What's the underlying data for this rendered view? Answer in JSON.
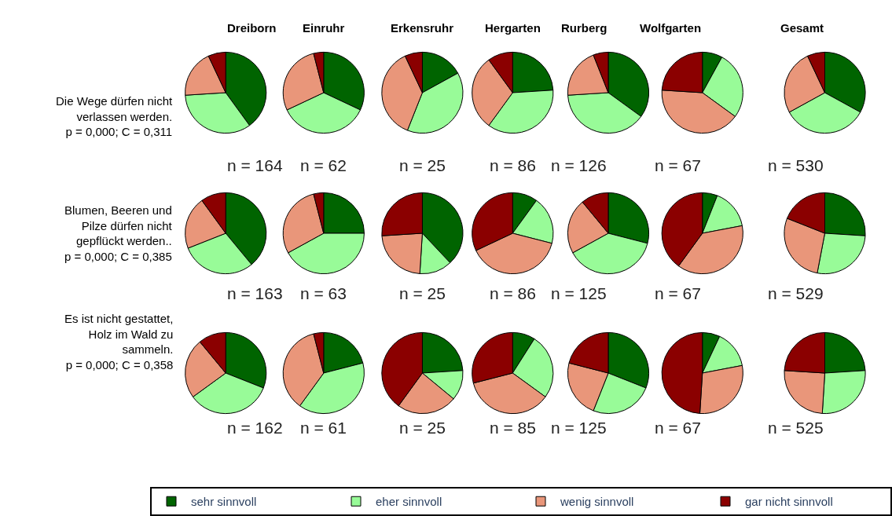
{
  "chart_data": [
    {
      "type": "pie",
      "title": "Dreiborn",
      "categories": [
        "sehr sinnvoll",
        "eher sinnvoll",
        "wenig sinnvoll",
        "gar nicht sinnvoll"
      ],
      "values": [
        40,
        34,
        19,
        7
      ],
      "colors": [
        "#006400",
        "#98fb98",
        "#e9967a",
        "#8b0000"
      ],
      "legend": "bottom",
      "annotations": [
        "Die Wege dürfen nicht\nverlassen werden.\np = 0,000; C = 0,311",
        "n = 164"
      ]
    },
    {
      "type": "pie",
      "title": "Einruhr",
      "values": [
        32,
        36,
        28,
        4
      ],
      "colors": [
        "#006400",
        "#98fb98",
        "#e9967a",
        "#8b0000"
      ],
      "annotations": [
        "n = 62"
      ]
    },
    {
      "type": "pie",
      "title": "Erkensruhr",
      "values": [
        17,
        39,
        37,
        7
      ],
      "colors": [
        "#006400",
        "#98fb98",
        "#e9967a",
        "#8b0000"
      ],
      "annotations": [
        "n = 25"
      ]
    },
    {
      "type": "pie",
      "title": "Hergarten",
      "values": [
        24,
        36,
        30,
        10
      ],
      "colors": [
        "#006400",
        "#98fb98",
        "#e9967a",
        "#8b0000"
      ],
      "annotations": [
        "n = 86"
      ]
    },
    {
      "type": "pie",
      "title": "Rurberg",
      "values": [
        35,
        39,
        20,
        6
      ],
      "colors": [
        "#006400",
        "#98fb98",
        "#e9967a",
        "#8b0000"
      ],
      "annotations": [
        "n = 126"
      ]
    },
    {
      "type": "pie",
      "title": "Wolfgarten",
      "values": [
        8,
        27,
        41,
        24
      ],
      "colors": [
        "#006400",
        "#98fb98",
        "#e9967a",
        "#8b0000"
      ],
      "annotations": [
        "n = 67"
      ]
    },
    {
      "type": "pie",
      "title": "Gesamt",
      "values": [
        33,
        34,
        26,
        7
      ],
      "colors": [
        "#006400",
        "#98fb98",
        "#e9967a",
        "#8b0000"
      ],
      "annotations": [
        "n = 530"
      ]
    },
    {
      "type": "pie",
      "values": [
        39,
        30,
        21,
        10
      ],
      "colors": [
        "#006400",
        "#98fb98",
        "#e9967a",
        "#8b0000"
      ],
      "annotations": [
        "Blumen, Beeren und\nPilze dürfen nicht\ngepflückt werden..\np = 0,000; C = 0,385",
        "n = 163"
      ]
    },
    {
      "type": "pie",
      "values": [
        25,
        42,
        29,
        4
      ],
      "colors": [
        "#006400",
        "#98fb98",
        "#e9967a",
        "#8b0000"
      ],
      "annotations": [
        "n = 63"
      ]
    },
    {
      "type": "pie",
      "values": [
        38,
        13,
        23,
        26
      ],
      "colors": [
        "#006400",
        "#98fb98",
        "#e9967a",
        "#8b0000"
      ],
      "annotations": [
        "n = 25"
      ]
    },
    {
      "type": "pie",
      "values": [
        10,
        19,
        39,
        32
      ],
      "colors": [
        "#006400",
        "#98fb98",
        "#e9967a",
        "#8b0000"
      ],
      "annotations": [
        "n = 86"
      ]
    },
    {
      "type": "pie",
      "values": [
        29,
        38,
        22,
        11
      ],
      "colors": [
        "#006400",
        "#98fb98",
        "#e9967a",
        "#8b0000"
      ],
      "annotations": [
        "n = 125"
      ]
    },
    {
      "type": "pie",
      "values": [
        6,
        16,
        38,
        40
      ],
      "colors": [
        "#006400",
        "#98fb98",
        "#e9967a",
        "#8b0000"
      ],
      "annotations": [
        "n = 67"
      ]
    },
    {
      "type": "pie",
      "values": [
        26,
        27,
        28,
        19
      ],
      "colors": [
        "#006400",
        "#98fb98",
        "#e9967a",
        "#8b0000"
      ],
      "annotations": [
        "n = 529"
      ]
    },
    {
      "type": "pie",
      "values": [
        31,
        34,
        24,
        11
      ],
      "colors": [
        "#006400",
        "#98fb98",
        "#e9967a",
        "#8b0000"
      ],
      "annotations": [
        "Es ist nicht gestattet,\nHolz im Wald zu\nsammeln.\np = 0,000; C = 0,358",
        "n = 162"
      ]
    },
    {
      "type": "pie",
      "values": [
        21,
        39,
        36,
        4
      ],
      "colors": [
        "#006400",
        "#98fb98",
        "#e9967a",
        "#8b0000"
      ],
      "annotations": [
        "n = 61"
      ]
    },
    {
      "type": "pie",
      "values": [
        24,
        12,
        24,
        40
      ],
      "colors": [
        "#006400",
        "#98fb98",
        "#e9967a",
        "#8b0000"
      ],
      "annotations": [
        "n = 25"
      ]
    },
    {
      "type": "pie",
      "values": [
        9,
        26,
        36,
        29
      ],
      "colors": [
        "#006400",
        "#98fb98",
        "#e9967a",
        "#8b0000"
      ],
      "annotations": [
        "n = 85"
      ]
    },
    {
      "type": "pie",
      "values": [
        31,
        25,
        23,
        21
      ],
      "colors": [
        "#006400",
        "#98fb98",
        "#e9967a",
        "#8b0000"
      ],
      "annotations": [
        "n = 125"
      ]
    },
    {
      "type": "pie",
      "values": [
        7,
        15,
        29,
        49
      ],
      "colors": [
        "#006400",
        "#98fb98",
        "#e9967a",
        "#8b0000"
      ],
      "annotations": [
        "n = 67"
      ]
    },
    {
      "type": "pie",
      "values": [
        24,
        27,
        25,
        24
      ],
      "colors": [
        "#006400",
        "#98fb98",
        "#e9967a",
        "#8b0000"
      ],
      "annotations": [
        "n = 525"
      ]
    }
  ]
}
